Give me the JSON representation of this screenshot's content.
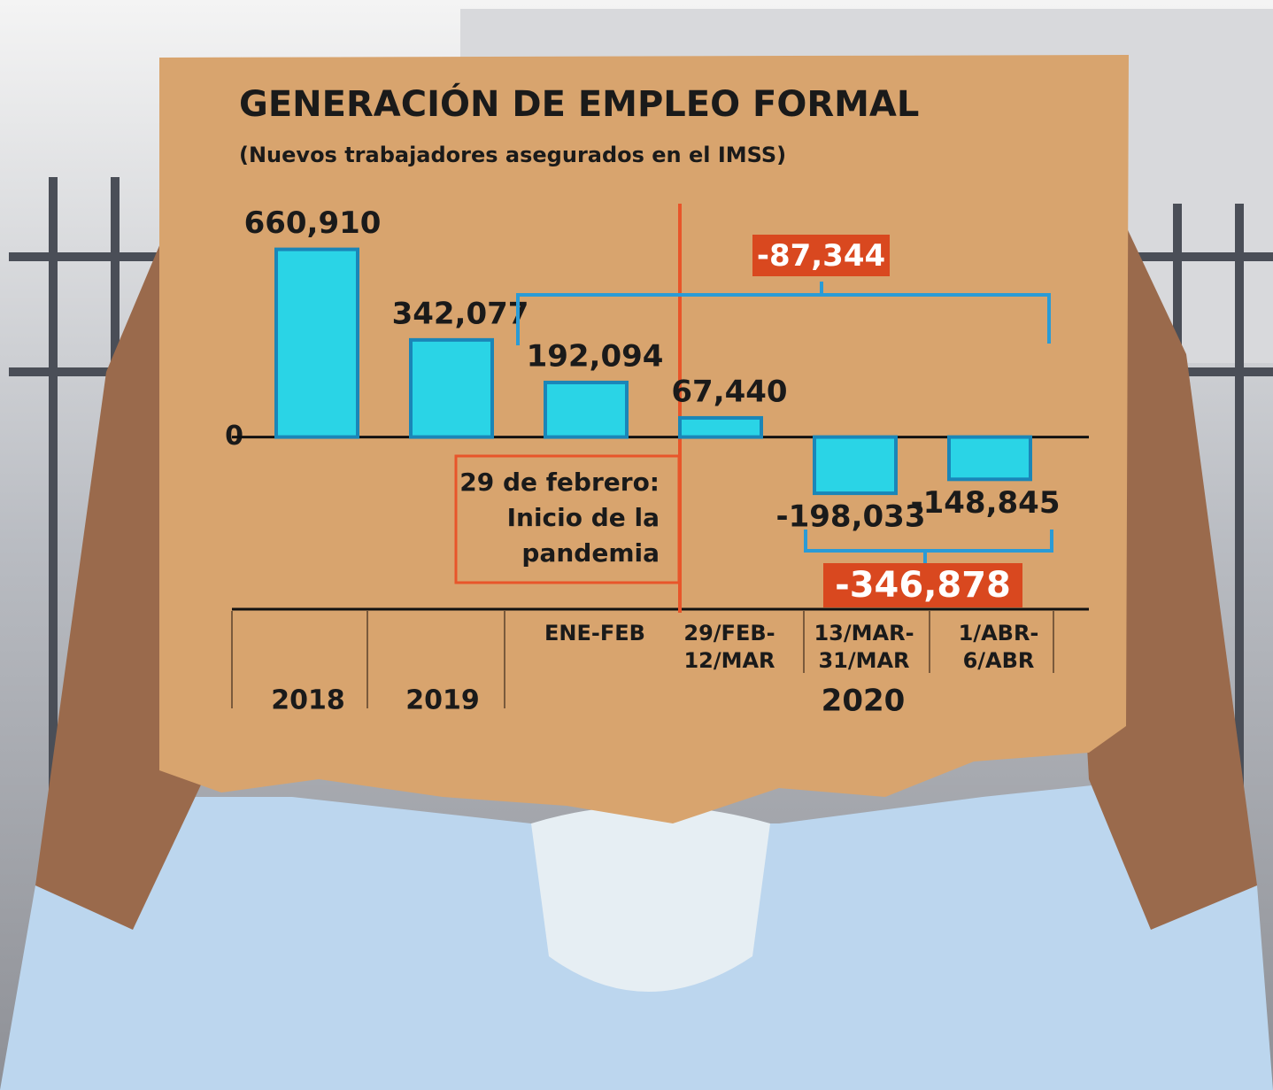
{
  "chart_data": {
    "type": "bar",
    "title": "GENERACIÓN DE EMPLEO FORMAL",
    "subtitle": "(Nuevos trabajadores asegurados en el IMSS)",
    "categories": [
      "2018",
      "2019",
      "ENE-FEB",
      [
        "29/FEB-",
        "12/MAR"
      ],
      [
        "13/MAR-",
        "31/MAR"
      ],
      [
        "1/ABR-",
        "6/ABR"
      ]
    ],
    "group_label": "2020",
    "values": [
      660910,
      342077,
      192094,
      67440,
      -198033,
      -148845
    ],
    "value_labels": [
      "660,910",
      "342,077",
      "192,094",
      "67,440",
      "-198,033",
      "-148,845"
    ],
    "color": "#2ad4e6",
    "ylim": [
      -600000,
      800000
    ],
    "yticks": [
      0
    ],
    "event_note": [
      "29 de febrero:",
      "Inicio de la",
      "pandemia"
    ],
    "brackets": [
      {
        "value": -87344,
        "label": "-87,344"
      },
      {
        "value": -346878,
        "label": "-346,878"
      }
    ]
  }
}
